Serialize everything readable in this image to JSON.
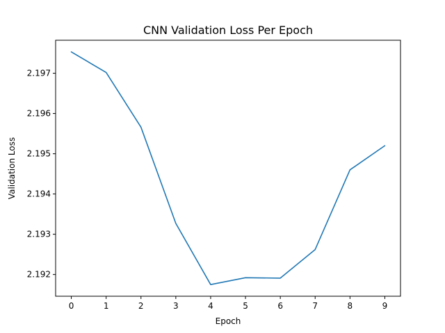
{
  "chart_data": {
    "type": "line",
    "title": "CNN Validation Loss Per Epoch",
    "xlabel": "Epoch",
    "ylabel": "Validation Loss",
    "x": [
      0,
      1,
      2,
      3,
      4,
      5,
      6,
      7,
      8,
      9
    ],
    "series": [
      {
        "values": [
          2.19753,
          2.19702,
          2.19566,
          2.19327,
          2.19175,
          2.19192,
          2.19191,
          2.19262,
          2.1946,
          2.1952
        ]
      }
    ],
    "xticks": [
      "0",
      "1",
      "2",
      "3",
      "4",
      "5",
      "6",
      "7",
      "8",
      "9"
    ],
    "yticks": [
      "2.192",
      "2.193",
      "2.194",
      "2.195",
      "2.196",
      "2.197"
    ],
    "xlim": [
      -0.45,
      9.45
    ],
    "ylim": [
      2.19146,
      2.19782
    ],
    "grid": false,
    "line_color": "#1f77b4"
  }
}
